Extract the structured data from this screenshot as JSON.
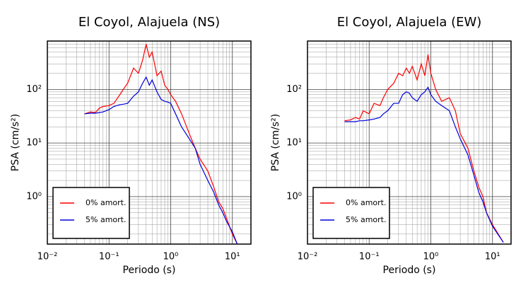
{
  "chart_data": [
    {
      "type": "line",
      "title": "El Coyol, Alajuela (NS)",
      "xlabel": "Periodo (s)",
      "ylabel": "PSA (cm/s²)",
      "log_x": true,
      "log_y": true,
      "grid": true,
      "legend": "lower left",
      "xlim": [
        0.01,
        20
      ],
      "ylim": [
        0.13,
        800
      ],
      "xticks": [
        {
          "value": 0.01,
          "label": "10⁻²"
        },
        {
          "value": 0.1,
          "label": "10⁻¹"
        },
        {
          "value": 1,
          "label": "10⁰"
        },
        {
          "value": 10,
          "label": "10¹"
        }
      ],
      "yticks": [
        {
          "value": 1,
          "label": "10⁰"
        },
        {
          "value": 10,
          "label": "10¹"
        },
        {
          "value": 100,
          "label": "10²"
        }
      ],
      "x": [
        0.04,
        0.05,
        0.06,
        0.07,
        0.08,
        0.1,
        0.12,
        0.15,
        0.17,
        0.2,
        0.25,
        0.3,
        0.35,
        0.4,
        0.45,
        0.5,
        0.6,
        0.7,
        0.8,
        0.9,
        1,
        1.2,
        1.5,
        2,
        2.5,
        3,
        4,
        5,
        6,
        7,
        8,
        10,
        12
      ],
      "series": [
        {
          "name": "0% amort.",
          "color": "#ff0000",
          "values": [
            35,
            38,
            37,
            45,
            48,
            50,
            55,
            80,
            100,
            130,
            250,
            200,
            350,
            700,
            400,
            500,
            180,
            220,
            120,
            100,
            80,
            60,
            35,
            15,
            8,
            5,
            3,
            1.5,
            0.8,
            0.6,
            0.4,
            0.2,
            0.13
          ]
        },
        {
          "name": "5% amort.",
          "color": "#0000dd",
          "values": [
            35,
            36,
            36,
            37,
            38,
            42,
            48,
            52,
            53,
            55,
            75,
            90,
            130,
            170,
            120,
            150,
            90,
            65,
            60,
            58,
            55,
            35,
            20,
            12,
            8,
            4,
            2,
            1.2,
            0.7,
            0.5,
            0.35,
            0.22,
            0.13
          ]
        }
      ]
    },
    {
      "type": "line",
      "title": "El Coyol, Alajuela (EW)",
      "xlabel": "Periodo (s)",
      "ylabel": "PSA (cm/s²)",
      "log_x": true,
      "log_y": true,
      "grid": true,
      "legend": "lower left",
      "xlim": [
        0.01,
        20
      ],
      "ylim": [
        0.13,
        800
      ],
      "xticks": [
        {
          "value": 0.01,
          "label": "10⁻²"
        },
        {
          "value": 0.1,
          "label": "10⁻¹"
        },
        {
          "value": 1,
          "label": "10⁰"
        },
        {
          "value": 10,
          "label": "10¹"
        }
      ],
      "yticks": [
        {
          "value": 1,
          "label": "10⁰"
        },
        {
          "value": 10,
          "label": "10¹"
        },
        {
          "value": 100,
          "label": "10²"
        }
      ],
      "x": [
        0.04,
        0.05,
        0.06,
        0.07,
        0.08,
        0.1,
        0.12,
        0.15,
        0.17,
        0.2,
        0.25,
        0.3,
        0.35,
        0.4,
        0.45,
        0.5,
        0.6,
        0.7,
        0.8,
        0.9,
        1,
        1.2,
        1.5,
        2,
        2.5,
        3,
        4,
        5,
        6,
        7,
        8,
        10,
        15
      ],
      "series": [
        {
          "name": "0% amort.",
          "color": "#ff0000",
          "values": [
            26,
            27,
            30,
            28,
            40,
            35,
            55,
            50,
            70,
            100,
            130,
            200,
            180,
            250,
            200,
            270,
            150,
            300,
            180,
            450,
            200,
            100,
            60,
            70,
            40,
            15,
            8,
            3,
            1.5,
            1,
            0.5,
            0.3,
            0.14
          ]
        },
        {
          "name": "5% amort.",
          "color": "#0000dd",
          "values": [
            25,
            25,
            25,
            26,
            26,
            27,
            28,
            30,
            35,
            40,
            55,
            55,
            80,
            90,
            85,
            70,
            60,
            80,
            90,
            110,
            80,
            60,
            50,
            40,
            20,
            12,
            6,
            2.5,
            1.2,
            0.8,
            0.5,
            0.28,
            0.14
          ]
        }
      ]
    }
  ]
}
